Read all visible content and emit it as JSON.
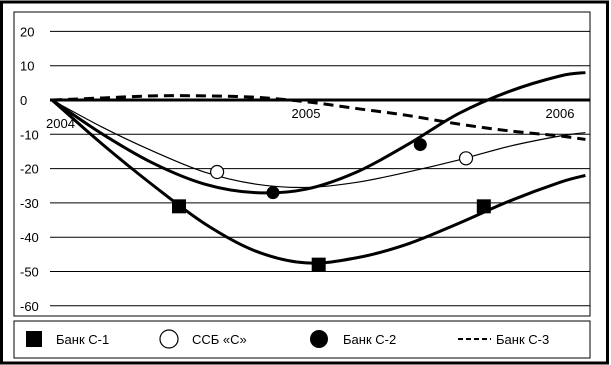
{
  "chart_data": {
    "type": "line",
    "title": "",
    "xlabel": "",
    "ylabel": "",
    "x_ticks": [
      "2004",
      "2005",
      "2006"
    ],
    "y_ticks": [
      20,
      10,
      0,
      -10,
      -20,
      -30,
      -40,
      -50,
      -60
    ],
    "ylim": [
      -63,
      22
    ],
    "grid": "horizontal",
    "legend_position": "bottom",
    "series": [
      {
        "name": "Банк С-1",
        "style": "thick solid line, filled square markers",
        "color": "#000000",
        "x": [
          2004.0,
          2004.2,
          2004.4,
          2004.6,
          2004.8,
          2005.0,
          2005.2,
          2005.4,
          2005.6,
          2005.8,
          2006.0,
          2006.1
        ],
        "y": [
          0,
          -13,
          -25,
          -36,
          -44,
          -47.5,
          -46,
          -42,
          -36,
          -29.5,
          -24,
          -22
        ],
        "markers": [
          {
            "x": 2004.5,
            "y": -31
          },
          {
            "x": 2005.05,
            "y": -48
          },
          {
            "x": 2005.7,
            "y": -31
          }
        ]
      },
      {
        "name": "ССБ «С»",
        "style": "thin solid line, hollow circle markers",
        "color": "#000000",
        "x": [
          2004.0,
          2004.2,
          2004.4,
          2004.6,
          2004.8,
          2005.0,
          2005.2,
          2005.4,
          2005.6,
          2005.8,
          2006.0,
          2006.1
        ],
        "y": [
          0,
          -8,
          -15,
          -21,
          -24.5,
          -25.5,
          -24,
          -21,
          -17.5,
          -13.5,
          -10.5,
          -9.5
        ],
        "markers": [
          {
            "x": 2004.65,
            "y": -21
          },
          {
            "x": 2005.63,
            "y": -17
          }
        ]
      },
      {
        "name": "Банк С-2",
        "style": "thick solid line, filled circle markers",
        "color": "#000000",
        "x": [
          2004.0,
          2004.2,
          2004.4,
          2004.6,
          2004.8,
          2005.0,
          2005.2,
          2005.4,
          2005.6,
          2005.8,
          2006.0,
          2006.1
        ],
        "y": [
          0,
          -10,
          -18.5,
          -24.5,
          -27,
          -26,
          -21,
          -13,
          -4,
          2.5,
          7,
          8
        ],
        "markers": [
          {
            "x": 2004.87,
            "y": -27
          },
          {
            "x": 2005.45,
            "y": -13
          }
        ]
      },
      {
        "name": "Банк С-3",
        "style": "thick dashed line, no markers",
        "color": "#000000",
        "x": [
          2004.0,
          2004.2,
          2004.4,
          2004.6,
          2004.8,
          2005.0,
          2005.2,
          2005.4,
          2005.6,
          2005.8,
          2006.0,
          2006.1
        ],
        "y": [
          0,
          0.6,
          1.2,
          1.2,
          0.8,
          -0.5,
          -2.5,
          -4.5,
          -7,
          -9,
          -10.5,
          -11.5
        ]
      }
    ],
    "legend": [
      {
        "label": "Банк С-1",
        "symbol": "filled-square"
      },
      {
        "label": "ССБ «С»",
        "symbol": "hollow-circle"
      },
      {
        "label": "Банк С-2",
        "symbol": "filled-circle"
      },
      {
        "label": "Банк С-3",
        "symbol": "dashed-line"
      }
    ]
  }
}
